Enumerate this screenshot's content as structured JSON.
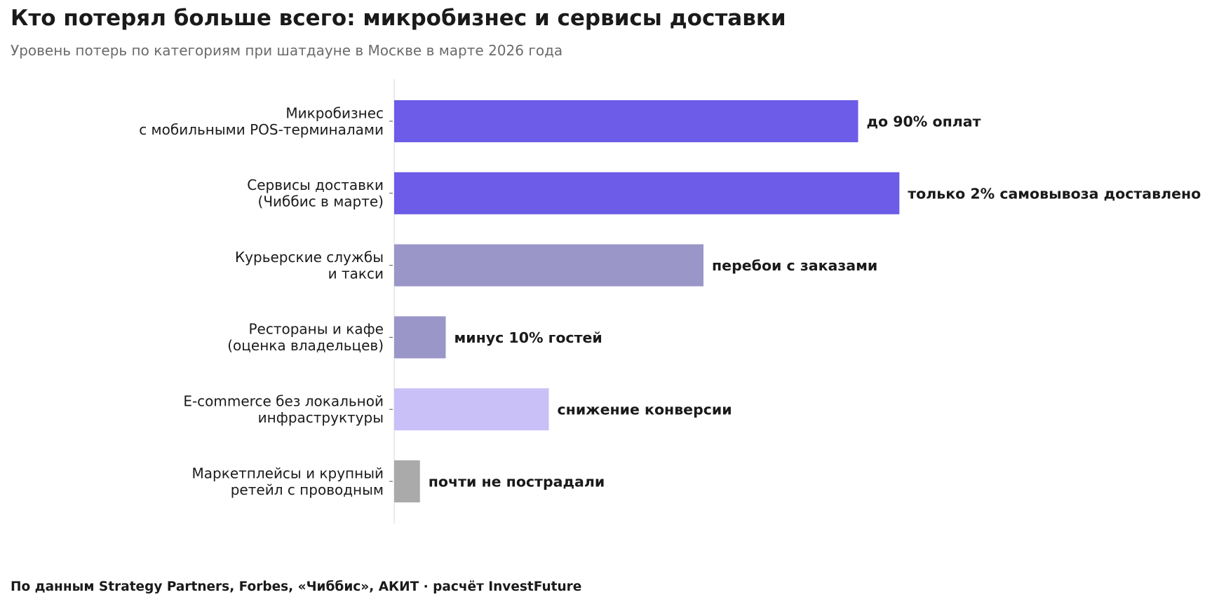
{
  "header": {
    "title": "Кто потерял больше всего: микробизнес и сервисы доставки",
    "subtitle": "Уровень потерь по категориям при шатдауне в Москве в марте 2026 года"
  },
  "footer": {
    "source": "По данным Strategy Partners, Forbes, «Чиббис», АКИТ · расчёт InvestFuture"
  },
  "chart_data": {
    "type": "bar",
    "orientation": "horizontal",
    "title": "Кто потерял больше всего: микробизнес и сервисы доставки",
    "subtitle": "Уровень потерь по категориям при шатдауне в Москве в марте 2026 года",
    "xlabel": "",
    "ylabel": "",
    "xlim": [
      0,
      100
    ],
    "grid": false,
    "legend": "none",
    "categories": [
      [
        "Микробизнес",
        "с мобильными POS-терминалами"
      ],
      [
        "Сервисы доставки",
        "(Чиббис в марте)"
      ],
      [
        "Курьерские службы",
        "и такси"
      ],
      [
        "Рестораны и кафе",
        "(оценка владельцев)"
      ],
      [
        "E-commerce без локальной",
        "инфраструктуры"
      ],
      [
        "Маркетплейсы и крупный",
        "ретейл с проводным"
      ]
    ],
    "values": [
      90,
      98,
      60,
      10,
      30,
      5
    ],
    "annotations": [
      "до 90% оплат",
      "только 2% самовывоза доставлено",
      "перебои с заказами",
      "минус 10% гостей",
      "снижение конверсии",
      "почти не пострадали"
    ],
    "colors": [
      "#6c5ce7",
      "#6c5ce7",
      "#9b96c8",
      "#9b96c8",
      "#c9c0f7",
      "#aaaaaa"
    ]
  }
}
